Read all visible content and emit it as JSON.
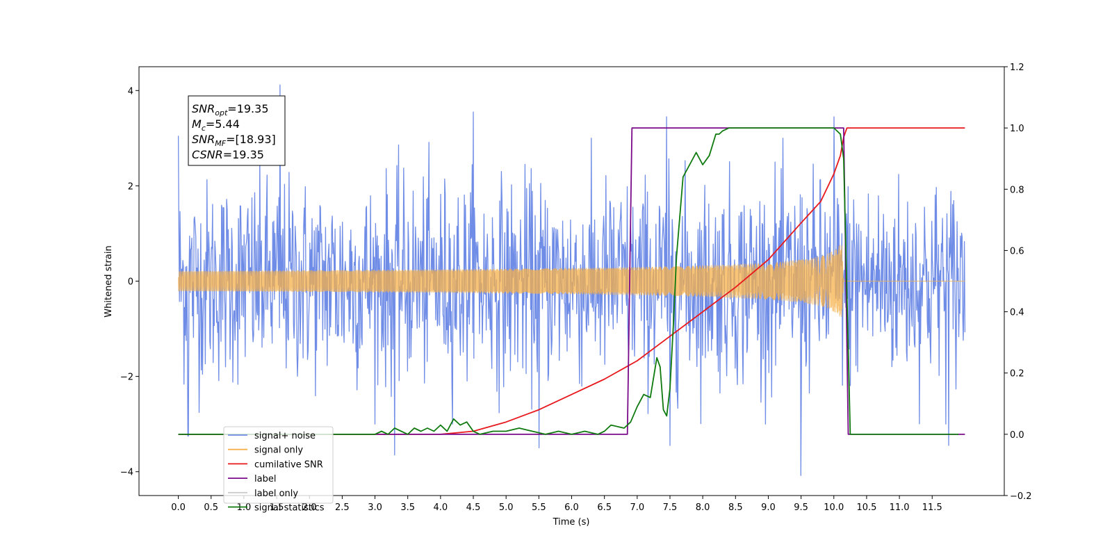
{
  "chart_data": {
    "type": "line",
    "xlabel": "Time (s)",
    "ylabel": "Whitened strain",
    "xlim": [
      -0.6,
      12.6
    ],
    "ylim_left": [
      -4.5,
      4.5
    ],
    "ylim_right": [
      -0.2,
      1.2
    ],
    "x_ticks": [
      "0.0",
      "0.5",
      "1.0",
      "1.5",
      "2.0",
      "2.5",
      "3.0",
      "3.5",
      "4.0",
      "4.5",
      "5.0",
      "5.5",
      "6.0",
      "6.5",
      "7.0",
      "7.5",
      "8.0",
      "8.5",
      "9.0",
      "9.5",
      "10.0",
      "10.5",
      "11.0",
      "11.5"
    ],
    "y_ticks_left": [
      "−4",
      "−2",
      "0",
      "2",
      "4"
    ],
    "y_ticks_right": [
      "−0.2",
      "0.0",
      "0.2",
      "0.4",
      "0.6",
      "0.8",
      "1.0",
      "1.2"
    ],
    "annotation": [
      {
        "base": "SNR",
        "sub": "opt",
        "rest": "=19.35"
      },
      {
        "base": "M",
        "sub": "c",
        "rest": "=5.44"
      },
      {
        "base": "SNR",
        "sub": "MF",
        "rest": "=[18.93]"
      },
      {
        "base": "CSNR",
        "sub": "",
        "rest": "=19.35"
      }
    ],
    "legend_position": "lower-left",
    "series": [
      {
        "name": "signal+ noise",
        "color": "#6f8ce6",
        "axis": "left",
        "kind": "noise",
        "x_range": [
          0.0,
          12.0
        ],
        "approx_std": 1.05,
        "extremes": [
          [
            0.0,
            3.05
          ],
          [
            0.15,
            -3.25
          ],
          [
            1.55,
            4.12
          ],
          [
            3.3,
            -3.65
          ],
          [
            4.5,
            3.55
          ],
          [
            5.5,
            -3.5
          ],
          [
            7.45,
            3.45
          ],
          [
            7.5,
            -3.45
          ],
          [
            9.5,
            -4.08
          ],
          [
            10.0,
            3.45
          ],
          [
            11.75,
            -3.45
          ]
        ]
      },
      {
        "name": "signal only",
        "color": "#f5b04a",
        "axis": "left",
        "kind": "chirp",
        "x_range": [
          0.0,
          12.0
        ],
        "merger_time": 10.15,
        "peak_amplitude": 0.95
      },
      {
        "name": "cumilative SNR",
        "color": "#e8171b",
        "axis": "right",
        "x": [
          0.0,
          4.0,
          4.5,
          5.0,
          5.5,
          6.0,
          6.5,
          7.0,
          7.5,
          8.0,
          8.5,
          9.0,
          9.5,
          9.8,
          10.0,
          10.1,
          10.15,
          10.2,
          12.0
        ],
        "y": [
          0.0,
          0.0,
          0.01,
          0.04,
          0.08,
          0.13,
          0.18,
          0.24,
          0.32,
          0.4,
          0.48,
          0.57,
          0.69,
          0.76,
          0.85,
          0.91,
          0.97,
          1.0,
          1.0
        ]
      },
      {
        "name": "label",
        "color": "#7a0a8a",
        "axis": "right",
        "x": [
          0.0,
          6.85,
          6.92,
          10.15,
          10.22,
          12.0
        ],
        "y": [
          0.0,
          0.0,
          1.0,
          1.0,
          0.0,
          0.0
        ]
      },
      {
        "name": "label only",
        "color": "#cccccc",
        "axis": "right",
        "hidden": true
      },
      {
        "name": "signal statistics",
        "color": "#0e7a0e",
        "axis": "right",
        "x": [
          0.0,
          3.0,
          3.1,
          3.2,
          3.3,
          3.4,
          3.5,
          3.6,
          3.7,
          3.8,
          3.9,
          4.0,
          4.1,
          4.2,
          4.3,
          4.4,
          4.5,
          4.6,
          4.8,
          5.0,
          5.2,
          5.4,
          5.6,
          5.8,
          6.0,
          6.2,
          6.4,
          6.5,
          6.6,
          6.8,
          6.9,
          7.0,
          7.1,
          7.2,
          7.3,
          7.35,
          7.4,
          7.45,
          7.5,
          7.55,
          7.6,
          7.7,
          7.8,
          7.9,
          8.0,
          8.1,
          8.2,
          8.25,
          8.3,
          8.4,
          8.6,
          9.0,
          10.0,
          10.1,
          10.15,
          10.25,
          11.9
        ],
        "y": [
          0.0,
          0.0,
          0.01,
          0.0,
          0.02,
          0.01,
          0.0,
          0.02,
          0.01,
          0.02,
          0.01,
          0.03,
          0.01,
          0.05,
          0.03,
          0.04,
          0.01,
          0.0,
          0.01,
          0.01,
          0.02,
          0.01,
          0.0,
          0.01,
          0.0,
          0.01,
          0.0,
          0.01,
          0.03,
          0.02,
          0.04,
          0.09,
          0.13,
          0.12,
          0.25,
          0.22,
          0.08,
          0.06,
          0.15,
          0.35,
          0.58,
          0.84,
          0.88,
          0.92,
          0.88,
          0.91,
          0.98,
          0.98,
          0.99,
          1.0,
          1.0,
          1.0,
          1.0,
          0.98,
          0.9,
          0.0,
          0.0
        ]
      }
    ]
  }
}
